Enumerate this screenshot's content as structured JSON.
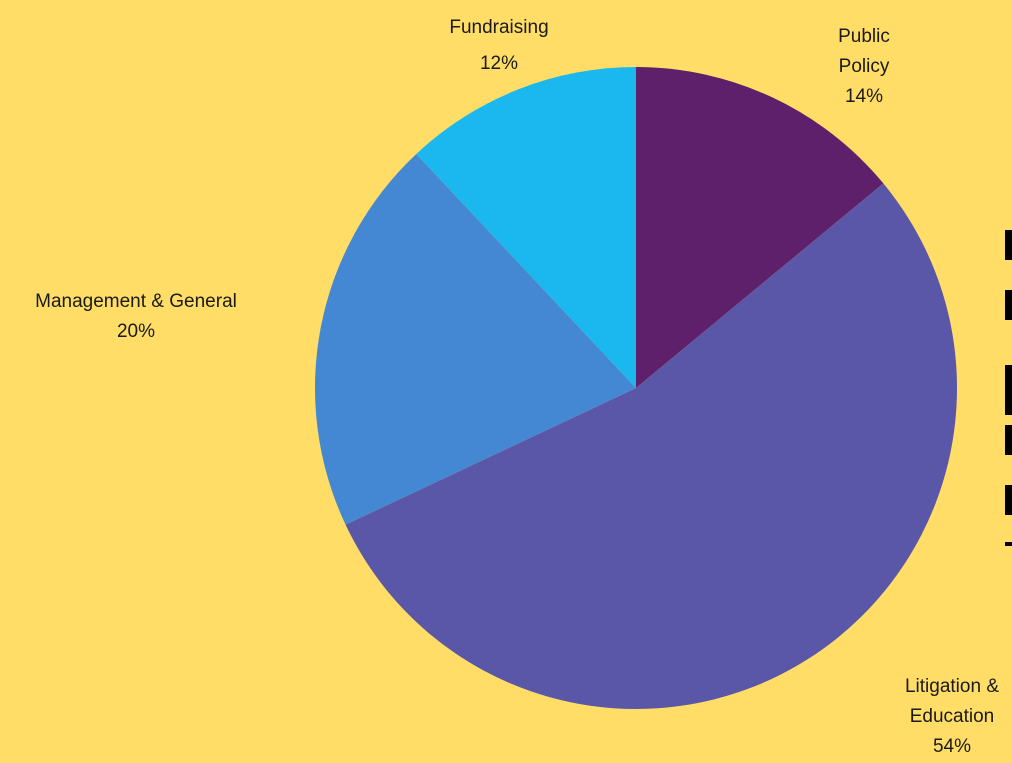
{
  "chart_data": {
    "type": "pie",
    "title": "",
    "start_angle_deg": 0,
    "direction": "clockwise",
    "slices": [
      {
        "name": "Public Policy",
        "label_lines": [
          "Public",
          "Policy"
        ],
        "percent_label": "14%",
        "value": 14,
        "color": "#5E206A"
      },
      {
        "name": "Litigation & Education",
        "label_lines": [
          "Litigation &",
          "Education"
        ],
        "percent_label": "54%",
        "value": 54,
        "color": "#5B57A8"
      },
      {
        "name": "Management & General",
        "label_lines": [
          "Management & General"
        ],
        "percent_label": "20%",
        "value": 20,
        "color": "#4488D4"
      },
      {
        "name": "Fundraising",
        "label_lines": [
          "Fundraising"
        ],
        "percent_label": "12%",
        "value": 12,
        "color": "#1AB8EE"
      }
    ],
    "background_color": "#FFDD66"
  }
}
